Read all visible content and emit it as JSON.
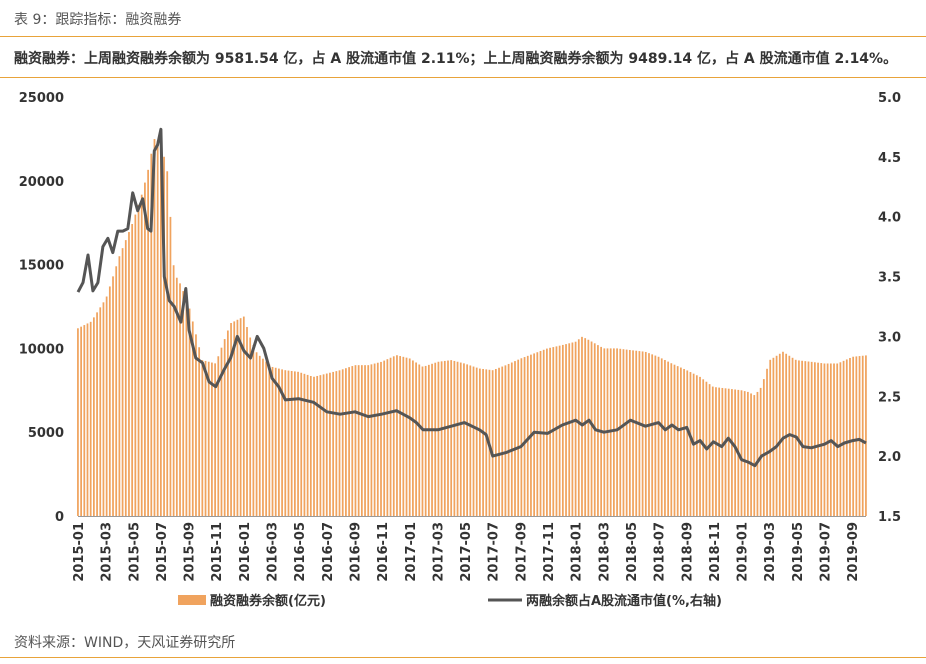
{
  "caption": "表 9：跟踪指标：融资融券",
  "headline": "融资融券：上周融资融券余额为 9581.54 亿，占 A 股流通市值 2.11%；上上周融资融券余额为 9489.14 亿，占 A 股流通市值 2.14%。",
  "source": "资料来源：WIND，天风证券研究所",
  "colors": {
    "bar": "#f0a35e",
    "line": "#555555",
    "accent_rule": "#e8a33a"
  },
  "chart_data": {
    "type": "bar+line",
    "x_tick_labels": [
      "2015-01",
      "2015-03",
      "2015-05",
      "2015-07",
      "2015-09",
      "2015-11",
      "2016-01",
      "2016-03",
      "2016-05",
      "2016-07",
      "2016-09",
      "2016-11",
      "2017-01",
      "2017-03",
      "2017-05",
      "2017-07",
      "2017-09",
      "2017-11",
      "2018-01",
      "2018-03",
      "2018-05",
      "2018-07",
      "2018-09",
      "2018-11",
      "2019-01",
      "2019-03",
      "2019-05",
      "2019-07",
      "2019-09"
    ],
    "y_left_ticks": [
      "0",
      "5000",
      "10000",
      "15000",
      "20000",
      "25000"
    ],
    "y_right_ticks": [
      "1.5",
      "2.0",
      "2.5",
      "3.0",
      "3.5",
      "4.0",
      "4.5",
      "5.0"
    ],
    "ylim_left": [
      0,
      25000
    ],
    "ylim_right": [
      1.5,
      5.0
    ],
    "x_range": [
      2015.0,
      2019.75
    ],
    "series": [
      {
        "name": "融资融券余额(亿元)",
        "axis": "left",
        "type": "bar",
        "points": [
          [
            2015.0,
            11200
          ],
          [
            2015.08,
            11600
          ],
          [
            2015.17,
            13000
          ],
          [
            2015.25,
            15500
          ],
          [
            2015.33,
            17500
          ],
          [
            2015.38,
            19000
          ],
          [
            2015.42,
            20500
          ],
          [
            2015.46,
            22500
          ],
          [
            2015.5,
            22300
          ],
          [
            2015.54,
            20500
          ],
          [
            2015.58,
            14500
          ],
          [
            2015.62,
            13800
          ],
          [
            2015.67,
            12500
          ],
          [
            2015.75,
            9300
          ],
          [
            2015.83,
            9100
          ],
          [
            2015.92,
            11500
          ],
          [
            2016.0,
            11900
          ],
          [
            2016.04,
            10600
          ],
          [
            2016.08,
            9700
          ],
          [
            2016.17,
            8900
          ],
          [
            2016.25,
            8700
          ],
          [
            2016.33,
            8600
          ],
          [
            2016.42,
            8300
          ],
          [
            2016.5,
            8500
          ],
          [
            2016.58,
            8700
          ],
          [
            2016.67,
            9000
          ],
          [
            2016.75,
            9000
          ],
          [
            2016.83,
            9200
          ],
          [
            2016.92,
            9600
          ],
          [
            2017.0,
            9400
          ],
          [
            2017.08,
            8900
          ],
          [
            2017.17,
            9200
          ],
          [
            2017.25,
            9300
          ],
          [
            2017.33,
            9100
          ],
          [
            2017.42,
            8800
          ],
          [
            2017.5,
            8700
          ],
          [
            2017.58,
            9000
          ],
          [
            2017.67,
            9400
          ],
          [
            2017.75,
            9700
          ],
          [
            2017.83,
            10000
          ],
          [
            2017.92,
            10200
          ],
          [
            2018.0,
            10400
          ],
          [
            2018.04,
            10700
          ],
          [
            2018.08,
            10500
          ],
          [
            2018.17,
            10000
          ],
          [
            2018.25,
            10000
          ],
          [
            2018.33,
            9900
          ],
          [
            2018.42,
            9800
          ],
          [
            2018.5,
            9500
          ],
          [
            2018.58,
            9100
          ],
          [
            2018.67,
            8700
          ],
          [
            2018.75,
            8300
          ],
          [
            2018.83,
            7700
          ],
          [
            2018.92,
            7600
          ],
          [
            2019.0,
            7500
          ],
          [
            2019.04,
            7400
          ],
          [
            2019.08,
            7200
          ],
          [
            2019.12,
            7700
          ],
          [
            2019.17,
            9300
          ],
          [
            2019.25,
            9800
          ],
          [
            2019.33,
            9300
          ],
          [
            2019.42,
            9200
          ],
          [
            2019.5,
            9100
          ],
          [
            2019.58,
            9100
          ],
          [
            2019.67,
            9500
          ],
          [
            2019.75,
            9581.54
          ]
        ]
      },
      {
        "name": "两融余额占A股流通市值(%,右轴)",
        "axis": "right",
        "type": "line",
        "points": [
          [
            2015.0,
            3.37
          ],
          [
            2015.03,
            3.45
          ],
          [
            2015.06,
            3.68
          ],
          [
            2015.09,
            3.38
          ],
          [
            2015.12,
            3.45
          ],
          [
            2015.15,
            3.75
          ],
          [
            2015.18,
            3.82
          ],
          [
            2015.21,
            3.7
          ],
          [
            2015.24,
            3.88
          ],
          [
            2015.27,
            3.88
          ],
          [
            2015.3,
            3.9
          ],
          [
            2015.33,
            4.2
          ],
          [
            2015.36,
            4.05
          ],
          [
            2015.39,
            4.15
          ],
          [
            2015.42,
            3.9
          ],
          [
            2015.44,
            3.88
          ],
          [
            2015.46,
            4.55
          ],
          [
            2015.48,
            4.6
          ],
          [
            2015.5,
            4.73
          ],
          [
            2015.52,
            3.5
          ],
          [
            2015.55,
            3.3
          ],
          [
            2015.58,
            3.25
          ],
          [
            2015.62,
            3.12
          ],
          [
            2015.65,
            3.4
          ],
          [
            2015.67,
            3.05
          ],
          [
            2015.71,
            2.82
          ],
          [
            2015.75,
            2.78
          ],
          [
            2015.79,
            2.62
          ],
          [
            2015.83,
            2.58
          ],
          [
            2015.88,
            2.72
          ],
          [
            2015.92,
            2.82
          ],
          [
            2015.96,
            3.0
          ],
          [
            2016.0,
            2.88
          ],
          [
            2016.04,
            2.82
          ],
          [
            2016.08,
            3.0
          ],
          [
            2016.12,
            2.9
          ],
          [
            2016.17,
            2.65
          ],
          [
            2016.21,
            2.58
          ],
          [
            2016.25,
            2.47
          ],
          [
            2016.33,
            2.48
          ],
          [
            2016.42,
            2.45
          ],
          [
            2016.5,
            2.37
          ],
          [
            2016.58,
            2.35
          ],
          [
            2016.67,
            2.37
          ],
          [
            2016.75,
            2.33
          ],
          [
            2016.83,
            2.35
          ],
          [
            2016.92,
            2.38
          ],
          [
            2017.0,
            2.32
          ],
          [
            2017.04,
            2.28
          ],
          [
            2017.08,
            2.22
          ],
          [
            2017.17,
            2.22
          ],
          [
            2017.25,
            2.25
          ],
          [
            2017.33,
            2.28
          ],
          [
            2017.42,
            2.22
          ],
          [
            2017.46,
            2.18
          ],
          [
            2017.5,
            2.0
          ],
          [
            2017.58,
            2.03
          ],
          [
            2017.67,
            2.08
          ],
          [
            2017.75,
            2.2
          ],
          [
            2017.83,
            2.19
          ],
          [
            2017.92,
            2.26
          ],
          [
            2018.0,
            2.3
          ],
          [
            2018.04,
            2.26
          ],
          [
            2018.08,
            2.3
          ],
          [
            2018.12,
            2.22
          ],
          [
            2018.17,
            2.2
          ],
          [
            2018.25,
            2.22
          ],
          [
            2018.33,
            2.3
          ],
          [
            2018.42,
            2.25
          ],
          [
            2018.5,
            2.28
          ],
          [
            2018.54,
            2.22
          ],
          [
            2018.58,
            2.26
          ],
          [
            2018.62,
            2.22
          ],
          [
            2018.67,
            2.24
          ],
          [
            2018.71,
            2.1
          ],
          [
            2018.75,
            2.13
          ],
          [
            2018.79,
            2.06
          ],
          [
            2018.83,
            2.12
          ],
          [
            2018.88,
            2.08
          ],
          [
            2018.92,
            2.15
          ],
          [
            2018.96,
            2.08
          ],
          [
            2019.0,
            1.97
          ],
          [
            2019.04,
            1.95
          ],
          [
            2019.08,
            1.92
          ],
          [
            2019.12,
            2.0
          ],
          [
            2019.17,
            2.04
          ],
          [
            2019.21,
            2.08
          ],
          [
            2019.25,
            2.15
          ],
          [
            2019.29,
            2.18
          ],
          [
            2019.33,
            2.16
          ],
          [
            2019.37,
            2.08
          ],
          [
            2019.42,
            2.07
          ],
          [
            2019.5,
            2.1
          ],
          [
            2019.54,
            2.13
          ],
          [
            2019.58,
            2.08
          ],
          [
            2019.62,
            2.11
          ],
          [
            2019.67,
            2.13
          ],
          [
            2019.71,
            2.14
          ],
          [
            2019.75,
            2.11
          ]
        ]
      }
    ],
    "legend": [
      "融资融券余额(亿元)",
      "两融余额占A股流通市值(%,右轴)"
    ],
    "legend_position": "bottom",
    "grid": false
  }
}
